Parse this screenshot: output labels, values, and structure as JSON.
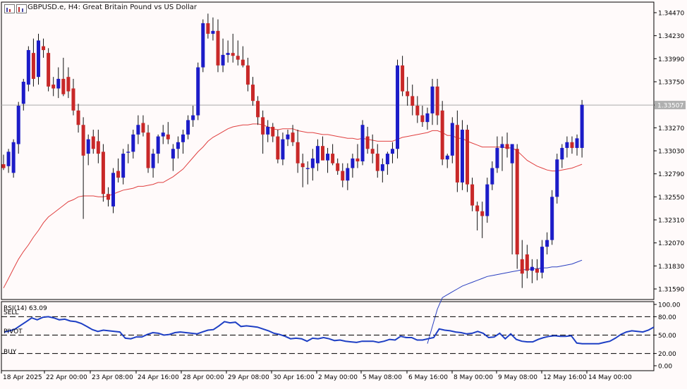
{
  "window": {
    "title": "GBPUSD.e, H4:  Great Britain Pound vs US Dollar"
  },
  "toolbar_icons": [
    "chart-mode-icon",
    "chart-history-icon"
  ],
  "colors": {
    "background": "#fffafa",
    "bull": "#1c1cc8",
    "bear": "#c82828",
    "ma_fast": "#e04040",
    "ma_slow": "#2a3fc0",
    "rsi_line": "#1e3fc4",
    "grid": "#000000",
    "price_line": "#aaaaaa"
  },
  "price_axis": {
    "labels": [
      "1.34470",
      "1.34230",
      "1.33990",
      "1.33750",
      "1.33507",
      "1.33270",
      "1.33030",
      "1.32790",
      "1.32550",
      "1.32310",
      "1.32070",
      "1.31830",
      "1.31590"
    ],
    "current_price": "1.33507"
  },
  "rsi_panel": {
    "label": "RSI(14) 63.09",
    "levels": [
      "100.00",
      "80.00",
      "50.00",
      "20.00",
      "0.00"
    ],
    "zone_labels": {
      "sell": "SELL",
      "pivot": "PIVOT",
      "buy": "BUY"
    }
  },
  "time_axis": {
    "labels": [
      "18 Apr 2025",
      "22 Apr 00:00",
      "23 Apr 08:00",
      "24 Apr 16:00",
      "28 Apr 00:00",
      "29 Apr 08:00",
      "30 Apr 16:00",
      "2 May 00:00",
      "5 May 08:00",
      "6 May 16:00",
      "8 May 00:00",
      "9 May 08:00",
      "12 May 16:00",
      "14 May 00:00"
    ]
  },
  "chart_data": [
    {
      "type": "candlestick",
      "title": "GBPUSD.e, H4:  Great Britain Pound vs US Dollar",
      "ylim": [
        1.3148,
        1.3458
      ],
      "candles": [
        {
          "o": 1.3289,
          "h": 1.3299,
          "l": 1.3283,
          "c": 1.3285
        },
        {
          "o": 1.3287,
          "h": 1.3305,
          "l": 1.328,
          "c": 1.3302
        },
        {
          "o": 1.328,
          "h": 1.3315,
          "l": 1.3275,
          "c": 1.3312
        },
        {
          "o": 1.331,
          "h": 1.3354,
          "l": 1.33,
          "c": 1.335
        },
        {
          "o": 1.3352,
          "h": 1.3378,
          "l": 1.3345,
          "c": 1.3375
        },
        {
          "o": 1.3372,
          "h": 1.3412,
          "l": 1.3365,
          "c": 1.3408
        },
        {
          "o": 1.3405,
          "h": 1.342,
          "l": 1.337,
          "c": 1.3378
        },
        {
          "o": 1.338,
          "h": 1.3425,
          "l": 1.3372,
          "c": 1.3418
        },
        {
          "o": 1.3412,
          "h": 1.342,
          "l": 1.34,
          "c": 1.3408
        },
        {
          "o": 1.3405,
          "h": 1.341,
          "l": 1.3365,
          "c": 1.337
        },
        {
          "o": 1.3372,
          "h": 1.338,
          "l": 1.336,
          "c": 1.3368
        },
        {
          "o": 1.3368,
          "h": 1.339,
          "l": 1.3358,
          "c": 1.3378
        },
        {
          "o": 1.3378,
          "h": 1.34,
          "l": 1.336,
          "c": 1.3362
        },
        {
          "o": 1.338,
          "h": 1.339,
          "l": 1.3358,
          "c": 1.3365
        },
        {
          "o": 1.3368,
          "h": 1.3378,
          "l": 1.334,
          "c": 1.3345
        },
        {
          "o": 1.3345,
          "h": 1.3352,
          "l": 1.3322,
          "c": 1.333
        },
        {
          "o": 1.333,
          "h": 1.3338,
          "l": 1.3232,
          "c": 1.3298
        },
        {
          "o": 1.33,
          "h": 1.332,
          "l": 1.3288,
          "c": 1.3315
        },
        {
          "o": 1.3318,
          "h": 1.3325,
          "l": 1.33,
          "c": 1.3305
        },
        {
          "o": 1.3313,
          "h": 1.3325,
          "l": 1.329,
          "c": 1.33
        },
        {
          "o": 1.3302,
          "h": 1.331,
          "l": 1.325,
          "c": 1.3258
        },
        {
          "o": 1.3258,
          "h": 1.3265,
          "l": 1.3245,
          "c": 1.3252
        },
        {
          "o": 1.3245,
          "h": 1.3285,
          "l": 1.3238,
          "c": 1.328
        },
        {
          "o": 1.3282,
          "h": 1.3295,
          "l": 1.327,
          "c": 1.3275
        },
        {
          "o": 1.3275,
          "h": 1.3305,
          "l": 1.3268,
          "c": 1.33
        },
        {
          "o": 1.3301,
          "h": 1.331,
          "l": 1.329,
          "c": 1.3302
        },
        {
          "o": 1.3302,
          "h": 1.3325,
          "l": 1.3295,
          "c": 1.332
        },
        {
          "o": 1.332,
          "h": 1.334,
          "l": 1.331,
          "c": 1.333
        },
        {
          "o": 1.3332,
          "h": 1.334,
          "l": 1.3318,
          "c": 1.3322
        },
        {
          "o": 1.3322,
          "h": 1.333,
          "l": 1.328,
          "c": 1.3285
        },
        {
          "o": 1.3285,
          "h": 1.3305,
          "l": 1.3275,
          "c": 1.33
        },
        {
          "o": 1.33,
          "h": 1.332,
          "l": 1.329,
          "c": 1.3318
        },
        {
          "o": 1.3318,
          "h": 1.333,
          "l": 1.331,
          "c": 1.3322
        },
        {
          "o": 1.332,
          "h": 1.3333,
          "l": 1.331,
          "c": 1.3315
        },
        {
          "o": 1.3295,
          "h": 1.331,
          "l": 1.3282,
          "c": 1.3305
        },
        {
          "o": 1.3305,
          "h": 1.3318,
          "l": 1.3295,
          "c": 1.3312
        },
        {
          "o": 1.3312,
          "h": 1.3325,
          "l": 1.33,
          "c": 1.332
        },
        {
          "o": 1.332,
          "h": 1.334,
          "l": 1.3315,
          "c": 1.3335
        },
        {
          "o": 1.3335,
          "h": 1.335,
          "l": 1.3328,
          "c": 1.334
        },
        {
          "o": 1.334,
          "h": 1.3395,
          "l": 1.3335,
          "c": 1.339
        },
        {
          "o": 1.339,
          "h": 1.344,
          "l": 1.3385,
          "c": 1.3436
        },
        {
          "o": 1.3436,
          "h": 1.3446,
          "l": 1.342,
          "c": 1.3425
        },
        {
          "o": 1.3425,
          "h": 1.3442,
          "l": 1.3418,
          "c": 1.3428
        },
        {
          "o": 1.3428,
          "h": 1.344,
          "l": 1.3385,
          "c": 1.3392
        },
        {
          "o": 1.3392,
          "h": 1.342,
          "l": 1.3385,
          "c": 1.3403
        },
        {
          "o": 1.3403,
          "h": 1.3418,
          "l": 1.3395,
          "c": 1.3405
        },
        {
          "o": 1.3405,
          "h": 1.3425,
          "l": 1.3395,
          "c": 1.3402
        },
        {
          "o": 1.3402,
          "h": 1.3418,
          "l": 1.3392,
          "c": 1.3398
        },
        {
          "o": 1.3398,
          "h": 1.3412,
          "l": 1.339,
          "c": 1.3392
        },
        {
          "o": 1.3392,
          "h": 1.34,
          "l": 1.3365,
          "c": 1.3372
        },
        {
          "o": 1.3372,
          "h": 1.338,
          "l": 1.335,
          "c": 1.3355
        },
        {
          "o": 1.3355,
          "h": 1.336,
          "l": 1.333,
          "c": 1.3338
        },
        {
          "o": 1.3338,
          "h": 1.3345,
          "l": 1.33,
          "c": 1.332
        },
        {
          "o": 1.332,
          "h": 1.3335,
          "l": 1.3312,
          "c": 1.3328
        },
        {
          "o": 1.3328,
          "h": 1.3332,
          "l": 1.3312,
          "c": 1.3318
        },
        {
          "o": 1.3318,
          "h": 1.3325,
          "l": 1.329,
          "c": 1.3294
        },
        {
          "o": 1.3294,
          "h": 1.3322,
          "l": 1.3288,
          "c": 1.3315
        },
        {
          "o": 1.3315,
          "h": 1.3325,
          "l": 1.3308,
          "c": 1.332
        },
        {
          "o": 1.3322,
          "h": 1.333,
          "l": 1.3308,
          "c": 1.3312
        },
        {
          "o": 1.3312,
          "h": 1.3325,
          "l": 1.328,
          "c": 1.329
        },
        {
          "o": 1.329,
          "h": 1.33,
          "l": 1.3265,
          "c": 1.3286
        },
        {
          "o": 1.3284,
          "h": 1.3292,
          "l": 1.3268,
          "c": 1.3285
        },
        {
          "o": 1.3285,
          "h": 1.3305,
          "l": 1.3272,
          "c": 1.3295
        },
        {
          "o": 1.329,
          "h": 1.3315,
          "l": 1.3282,
          "c": 1.3308
        },
        {
          "o": 1.3308,
          "h": 1.3318,
          "l": 1.3295,
          "c": 1.3293
        },
        {
          "o": 1.3293,
          "h": 1.3306,
          "l": 1.328,
          "c": 1.33
        },
        {
          "o": 1.33,
          "h": 1.331,
          "l": 1.3288,
          "c": 1.329
        },
        {
          "o": 1.329,
          "h": 1.3295,
          "l": 1.3278,
          "c": 1.3282
        },
        {
          "o": 1.3282,
          "h": 1.329,
          "l": 1.3265,
          "c": 1.3272
        },
        {
          "o": 1.3272,
          "h": 1.329,
          "l": 1.3262,
          "c": 1.3285
        },
        {
          "o": 1.3285,
          "h": 1.33,
          "l": 1.3275,
          "c": 1.3295
        },
        {
          "o": 1.3295,
          "h": 1.331,
          "l": 1.3285,
          "c": 1.3292
        },
        {
          "o": 1.3292,
          "h": 1.3335,
          "l": 1.3288,
          "c": 1.333
        },
        {
          "o": 1.3318,
          "h": 1.3328,
          "l": 1.33,
          "c": 1.3305
        },
        {
          "o": 1.3305,
          "h": 1.332,
          "l": 1.329,
          "c": 1.33
        },
        {
          "o": 1.33,
          "h": 1.331,
          "l": 1.3275,
          "c": 1.3282
        },
        {
          "o": 1.3282,
          "h": 1.3295,
          "l": 1.327,
          "c": 1.3289
        },
        {
          "o": 1.3289,
          "h": 1.3302,
          "l": 1.3278,
          "c": 1.33
        },
        {
          "o": 1.33,
          "h": 1.3312,
          "l": 1.329,
          "c": 1.3305
        },
        {
          "o": 1.3305,
          "h": 1.3398,
          "l": 1.3295,
          "c": 1.3392
        },
        {
          "o": 1.3392,
          "h": 1.3402,
          "l": 1.336,
          "c": 1.3365
        },
        {
          "o": 1.3365,
          "h": 1.338,
          "l": 1.335,
          "c": 1.336
        },
        {
          "o": 1.336,
          "h": 1.3372,
          "l": 1.334,
          "c": 1.335
        },
        {
          "o": 1.335,
          "h": 1.336,
          "l": 1.3332,
          "c": 1.334
        },
        {
          "o": 1.334,
          "h": 1.335,
          "l": 1.3328,
          "c": 1.3333
        },
        {
          "o": 1.3333,
          "h": 1.3348,
          "l": 1.3325,
          "c": 1.3342
        },
        {
          "o": 1.3342,
          "h": 1.3378,
          "l": 1.333,
          "c": 1.337
        },
        {
          "o": 1.337,
          "h": 1.3378,
          "l": 1.333,
          "c": 1.334
        },
        {
          "o": 1.3345,
          "h": 1.3355,
          "l": 1.3288,
          "c": 1.3294
        },
        {
          "o": 1.3294,
          "h": 1.33,
          "l": 1.3285,
          "c": 1.3298
        },
        {
          "o": 1.3298,
          "h": 1.3338,
          "l": 1.329,
          "c": 1.3332
        },
        {
          "o": 1.333,
          "h": 1.3345,
          "l": 1.326,
          "c": 1.327
        },
        {
          "o": 1.327,
          "h": 1.3335,
          "l": 1.3262,
          "c": 1.3325
        },
        {
          "o": 1.3325,
          "h": 1.333,
          "l": 1.326,
          "c": 1.3268
        },
        {
          "o": 1.3268,
          "h": 1.3275,
          "l": 1.324,
          "c": 1.3246
        },
        {
          "o": 1.3246,
          "h": 1.325,
          "l": 1.322,
          "c": 1.324
        },
        {
          "o": 1.324,
          "h": 1.325,
          "l": 1.3212,
          "c": 1.3235
        },
        {
          "o": 1.3235,
          "h": 1.3275,
          "l": 1.3228,
          "c": 1.3268
        },
        {
          "o": 1.3268,
          "h": 1.3292,
          "l": 1.3262,
          "c": 1.3285
        },
        {
          "o": 1.3285,
          "h": 1.3318,
          "l": 1.328,
          "c": 1.3306
        },
        {
          "o": 1.3306,
          "h": 1.3318,
          "l": 1.3282,
          "c": 1.331
        },
        {
          "o": 1.331,
          "h": 1.3322,
          "l": 1.3296,
          "c": 1.3305
        },
        {
          "o": 1.329,
          "h": 1.331,
          "l": 1.3195,
          "c": 1.331
        },
        {
          "o": 1.3305,
          "h": 1.331,
          "l": 1.318,
          "c": 1.3195
        },
        {
          "o": 1.319,
          "h": 1.321,
          "l": 1.316,
          "c": 1.3175
        },
        {
          "o": 1.3195,
          "h": 1.3205,
          "l": 1.317,
          "c": 1.3178
        },
        {
          "o": 1.3178,
          "h": 1.319,
          "l": 1.3165,
          "c": 1.3182
        },
        {
          "o": 1.318,
          "h": 1.319,
          "l": 1.3168,
          "c": 1.3176
        },
        {
          "o": 1.3176,
          "h": 1.321,
          "l": 1.317,
          "c": 1.3203
        },
        {
          "o": 1.3203,
          "h": 1.3218,
          "l": 1.3195,
          "c": 1.321
        },
        {
          "o": 1.321,
          "h": 1.3262,
          "l": 1.3205,
          "c": 1.3255
        },
        {
          "o": 1.3255,
          "h": 1.33,
          "l": 1.3248,
          "c": 1.3294
        },
        {
          "o": 1.3294,
          "h": 1.331,
          "l": 1.3285,
          "c": 1.3306
        },
        {
          "o": 1.3306,
          "h": 1.3318,
          "l": 1.3296,
          "c": 1.3312
        },
        {
          "o": 1.3312,
          "h": 1.3318,
          "l": 1.33,
          "c": 1.3306
        },
        {
          "o": 1.3306,
          "h": 1.332,
          "l": 1.3298,
          "c": 1.3316
        },
        {
          "o": 1.3306,
          "h": 1.3356,
          "l": 1.3296,
          "c": 1.3351
        }
      ],
      "ma_fast": [
        1.316,
        1.317,
        1.318,
        1.319,
        1.3198,
        1.3205,
        1.3213,
        1.322,
        1.3228,
        1.3234,
        1.3238,
        1.3242,
        1.3246,
        1.325,
        1.3252,
        1.3255,
        1.3256,
        1.3256,
        1.3256,
        1.3255,
        1.3255,
        1.3256,
        1.3258,
        1.326,
        1.3262,
        1.3263,
        1.3264,
        1.3266,
        1.3266,
        1.3267,
        1.3268,
        1.327,
        1.327,
        1.3273,
        1.3276,
        1.328,
        1.3284,
        1.329,
        1.3296,
        1.3302,
        1.3307,
        1.3313,
        1.3317,
        1.332,
        1.3323,
        1.3326,
        1.3328,
        1.3329,
        1.333,
        1.333,
        1.3331,
        1.3331,
        1.333,
        1.3328,
        1.3326,
        1.3325,
        1.3326,
        1.3326,
        1.3326,
        1.3324,
        1.3323,
        1.3322,
        1.3322,
        1.3321,
        1.332,
        1.332,
        1.3319,
        1.3318,
        1.3317,
        1.3316,
        1.3316,
        1.3315,
        1.3316,
        1.3315,
        1.3314,
        1.3313,
        1.3313,
        1.3313,
        1.3313,
        1.3315,
        1.3317,
        1.3318,
        1.3319,
        1.332,
        1.3321,
        1.3322,
        1.3324,
        1.3324,
        1.3322,
        1.3319,
        1.3319,
        1.3316,
        1.3316,
        1.3313,
        1.3311,
        1.3309,
        1.3307,
        1.3307,
        1.3307,
        1.3307,
        1.3307,
        1.3306,
        1.3306,
        1.3303,
        1.3298,
        1.3293,
        1.329,
        1.3287,
        1.3285,
        1.3283,
        1.3282,
        1.3282,
        1.3283,
        1.3284,
        1.3285,
        1.3287,
        1.3289
      ],
      "ma_slow": [
        1.3102,
        1.312,
        1.3138,
        1.315,
        1.3153,
        1.3156,
        1.3159,
        1.3162,
        1.3164,
        1.3166,
        1.3168,
        1.317,
        1.3172,
        1.3173,
        1.3174,
        1.3175,
        1.3176,
        1.3177,
        1.3178,
        1.3179,
        1.3179,
        1.318,
        1.318,
        1.3181,
        1.3181,
        1.3182,
        1.3182,
        1.3183,
        1.3184,
        1.3185,
        1.3187,
        1.3189
      ]
    },
    {
      "type": "line",
      "title": "RSI(14) 63.09",
      "ylim": [
        0,
        100
      ],
      "levels": [
        80,
        50,
        20
      ],
      "values": [
        55,
        57,
        60,
        66,
        72,
        78,
        75,
        79,
        80,
        78,
        75,
        76,
        73,
        72,
        69,
        64,
        59,
        56,
        58,
        57,
        56,
        55,
        45,
        44,
        47,
        47,
        51,
        54,
        53,
        50,
        51,
        54,
        55,
        54,
        53,
        52,
        55,
        58,
        59,
        65,
        72,
        70,
        71,
        64,
        65,
        64,
        63,
        60,
        57,
        53,
        51,
        48,
        44,
        45,
        44,
        40,
        45,
        44,
        46,
        44,
        41,
        42,
        40,
        39,
        38,
        40,
        40,
        40,
        38,
        40,
        43,
        42,
        48,
        46,
        46,
        42,
        42,
        44,
        46,
        60,
        58,
        57,
        55,
        54,
        52,
        53,
        56,
        53,
        46,
        47,
        53,
        44,
        52,
        43,
        40,
        39,
        39,
        43,
        46,
        48,
        49,
        48,
        48,
        49,
        37,
        36,
        36,
        36,
        36,
        38,
        40,
        45,
        51,
        55,
        57,
        56,
        55,
        58,
        63
      ]
    }
  ]
}
